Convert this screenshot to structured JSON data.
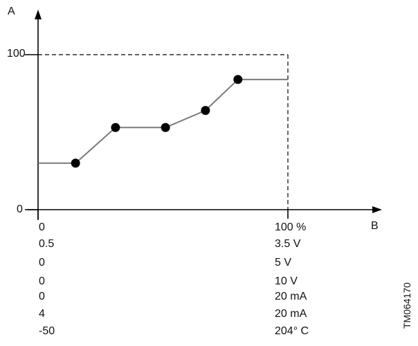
{
  "axes": {
    "y_label": "A",
    "x_label": "B",
    "y_ticks": [
      "100",
      "0"
    ]
  },
  "chart_data": {
    "type": "line",
    "xlim": [
      0,
      100
    ],
    "ylim": [
      0,
      100
    ],
    "series": [
      {
        "x": [
          0,
          15,
          31,
          51,
          67,
          80,
          100
        ],
        "y": [
          30,
          30,
          53,
          53,
          64,
          84,
          84
        ],
        "markers": [
          {
            "x": 15,
            "y": 30
          },
          {
            "x": 31,
            "y": 53
          },
          {
            "x": 51,
            "y": 53
          },
          {
            "x": 67,
            "y": 64
          },
          {
            "x": 80,
            "y": 84
          }
        ]
      }
    ],
    "guides": {
      "dashed_limit_x": 100,
      "dashed_limit_y": 100
    }
  },
  "ranges": [
    {
      "min": "0",
      "max": "100 %"
    },
    {
      "min": "0.5",
      "max": "3.5 V"
    },
    {
      "min": "0",
      "max": "5 V"
    },
    {
      "min": "0",
      "max": "10 V"
    },
    {
      "min": "0",
      "max": "20 mA"
    },
    {
      "min": "4",
      "max": "20 mA"
    },
    {
      "min": "-50",
      "max": "204° C"
    }
  ],
  "document_id": "TM064170",
  "colors": {
    "curve": "#7a7a7a",
    "marker": "#000000",
    "axis": "#000000"
  }
}
